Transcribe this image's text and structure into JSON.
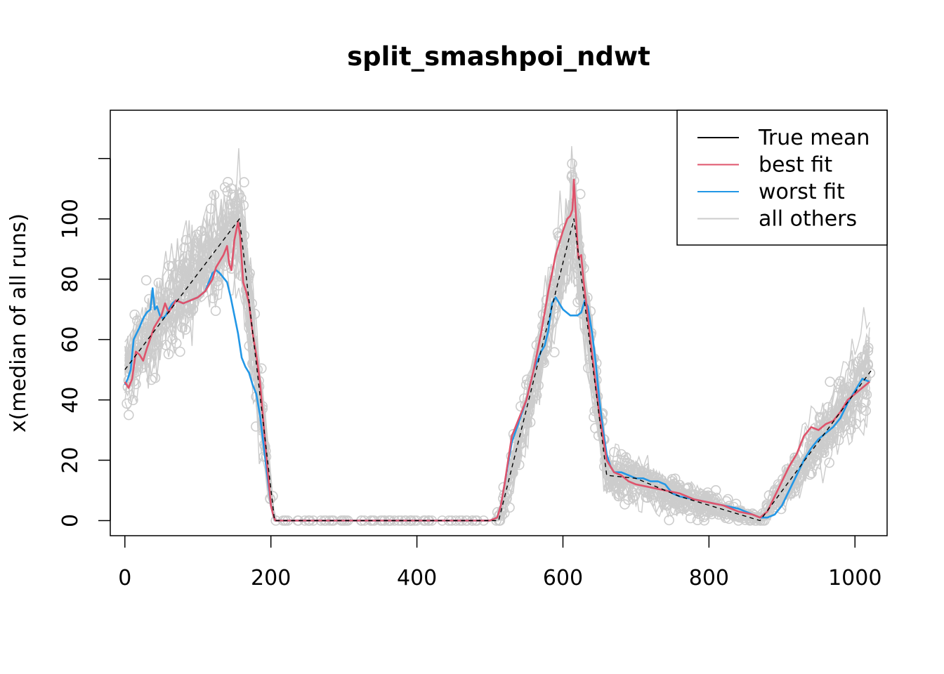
{
  "chart_data": {
    "type": "line",
    "title": "split_smashpoi_ndwt",
    "xlabel": "",
    "ylabel": "x(median of all runs)",
    "xlim": [
      -20,
      1044
    ],
    "ylim": [
      -5,
      136
    ],
    "x_ticks": [
      0,
      200,
      400,
      600,
      800,
      1000
    ],
    "x_tick_labels": [
      "0",
      "200",
      "400",
      "600",
      "800",
      "1000"
    ],
    "y_ticks": [
      0,
      20,
      40,
      60,
      80,
      100,
      120
    ],
    "y_tick_labels": [
      "0",
      "20",
      "40",
      "60",
      "80",
      "100",
      ""
    ],
    "legend_position": "top-right",
    "colors": {
      "true_mean": "#000000",
      "best_fit": "#DF536B",
      "worst_fit": "#2297E6",
      "all_others": "#CCCCCC"
    },
    "series": [
      {
        "name": "True mean",
        "key": "true_mean",
        "style": "dashed",
        "x": [
          0,
          157,
          205,
          510,
          512,
          615,
          660,
          700,
          760,
          870,
          1023
        ],
        "values": [
          50,
          100,
          0,
          0,
          0,
          100,
          15,
          14,
          8,
          0,
          50
        ]
      },
      {
        "name": "best fit",
        "key": "best_fit",
        "style": "solid",
        "x": [
          0,
          5,
          10,
          15,
          20,
          25,
          30,
          40,
          50,
          55,
          60,
          65,
          70,
          80,
          90,
          100,
          110,
          120,
          125,
          130,
          135,
          140,
          143,
          146,
          150,
          155,
          158,
          162,
          166,
          170,
          175,
          180,
          185,
          190,
          195,
          200,
          203,
          206,
          210,
          300,
          400,
          500,
          510,
          515,
          520,
          525,
          530,
          540,
          550,
          560,
          570,
          580,
          590,
          600,
          606,
          610,
          613,
          615,
          618,
          621,
          625,
          628,
          632,
          640,
          650,
          660,
          670,
          680,
          690,
          700,
          720,
          740,
          760,
          780,
          800,
          820,
          840,
          860,
          870,
          880,
          890,
          900,
          910,
          920,
          930,
          940,
          950,
          960,
          970,
          980,
          990,
          1000,
          1010,
          1020
        ],
        "values": [
          46,
          44,
          47,
          56,
          55,
          53,
          57,
          64,
          68,
          72,
          69,
          71,
          73,
          72,
          73,
          74,
          76,
          80,
          84,
          86,
          88,
          91,
          85,
          83,
          93,
          99,
          94,
          79,
          76,
          72,
          62,
          55,
          46,
          32,
          18,
          5,
          2,
          0,
          0,
          0,
          0,
          0,
          1,
          5,
          12,
          20,
          28,
          34,
          40,
          50,
          62,
          76,
          88,
          96,
          100,
          101,
          103,
          113,
          100,
          87,
          88,
          80,
          72,
          55,
          35,
          20,
          16,
          15,
          13,
          12,
          11,
          10,
          9,
          7,
          6,
          5,
          3,
          2,
          1,
          3,
          8,
          13,
          18,
          22,
          28,
          31,
          30,
          32,
          33,
          36,
          40,
          42,
          44,
          46
        ]
      },
      {
        "name": "worst fit",
        "key": "worst_fit",
        "style": "solid",
        "x": [
          0,
          4,
          8,
          12,
          16,
          20,
          25,
          30,
          35,
          38,
          41,
          44,
          48,
          52,
          56,
          60,
          65,
          70,
          80,
          90,
          100,
          110,
          115,
          120,
          125,
          130,
          140,
          145,
          150,
          155,
          160,
          165,
          170,
          175,
          180,
          185,
          190,
          195,
          200,
          203,
          206,
          210,
          300,
          400,
          500,
          510,
          515,
          520,
          525,
          530,
          540,
          550,
          560,
          570,
          575,
          580,
          585,
          590,
          600,
          610,
          620,
          625,
          630,
          634,
          640,
          645,
          650,
          655,
          660,
          665,
          670,
          680,
          690,
          700,
          710,
          720,
          730,
          740,
          750,
          760,
          780,
          800,
          820,
          840,
          860,
          870,
          880,
          890,
          900,
          910,
          920,
          930,
          940,
          950,
          960,
          970,
          980,
          990,
          1000,
          1010,
          1020
        ],
        "values": [
          45,
          47,
          50,
          60,
          62,
          64,
          67,
          69,
          70,
          77,
          70,
          71,
          68,
          67,
          68,
          70,
          72,
          73,
          72,
          73,
          74,
          76,
          79,
          82,
          83,
          82,
          79,
          74,
          68,
          62,
          54,
          51,
          49,
          45,
          42,
          35,
          25,
          15,
          5,
          2,
          0,
          0,
          0,
          0,
          0,
          1,
          5,
          12,
          19,
          26,
          33,
          40,
          50,
          56,
          58,
          63,
          72,
          74,
          70,
          68,
          68,
          69,
          73,
          71,
          62,
          52,
          40,
          30,
          22,
          18,
          16,
          16,
          15,
          14,
          14,
          13,
          13,
          12,
          9,
          8,
          7,
          6,
          5,
          4,
          2,
          1,
          1,
          2,
          5,
          10,
          15,
          20,
          24,
          27,
          29,
          31,
          34,
          39,
          43,
          47,
          46
        ]
      }
    ],
    "legend": [
      {
        "label": "True mean",
        "key": "true_mean"
      },
      {
        "label": "best fit",
        "key": "best_fit"
      },
      {
        "label": "worst fit",
        "key": "worst_fit"
      },
      {
        "label": "all others",
        "key": "all_others"
      }
    ]
  }
}
